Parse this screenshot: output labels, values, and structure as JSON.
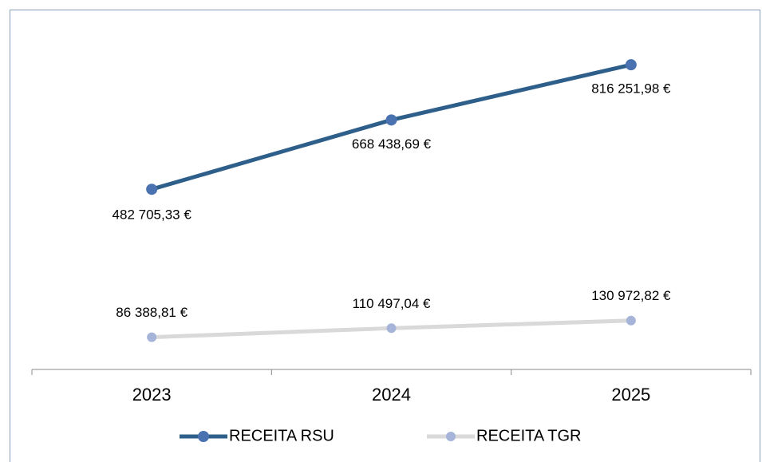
{
  "chart_data": {
    "type": "line",
    "categories": [
      "2023",
      "2024",
      "2025"
    ],
    "series": [
      {
        "name": "RECEITA RSU",
        "color": "#2e5f8a",
        "marker_color": "#4a72b0",
        "values": [
          482705.33,
          668438.69,
          816251.98
        ],
        "value_labels": [
          "482 705,33 €",
          "668 438,69 €",
          "816 251,98 €"
        ]
      },
      {
        "name": "RECEITA TGR",
        "color": "#d9d9d9",
        "marker_color": "#a5b4d8",
        "values": [
          86388.81,
          110497.04,
          130972.82
        ],
        "value_labels": [
          "86 388,81 €",
          "110 497,04 €",
          "130 972,82 €"
        ]
      }
    ],
    "ylim": [
      0,
      900000
    ]
  }
}
